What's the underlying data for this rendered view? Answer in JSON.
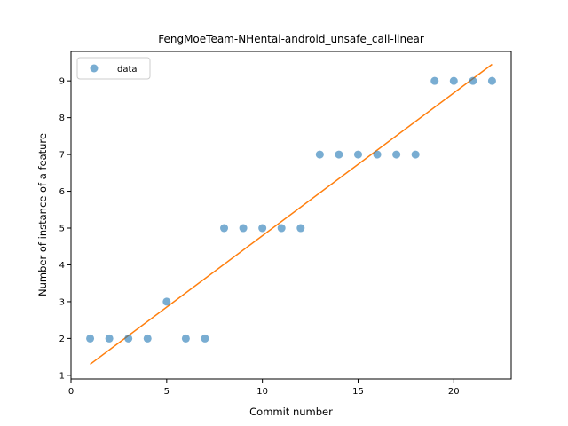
{
  "chart_data": {
    "type": "scatter",
    "title": "FengMoeTeam-NHentai-android_unsafe_call-linear",
    "xlabel": "Commit number",
    "ylabel": "Number of instance of a feature",
    "xlim": [
      0,
      23
    ],
    "ylim": [
      0.9,
      9.8
    ],
    "xticks": [
      0,
      5,
      10,
      15,
      20
    ],
    "yticks": [
      1,
      2,
      3,
      4,
      5,
      6,
      7,
      8,
      9
    ],
    "legend_position": "top-left",
    "series": [
      {
        "name": "data",
        "kind": "scatter",
        "color": "#1f77b4",
        "x": [
          1,
          2,
          3,
          4,
          5,
          6,
          7,
          8,
          9,
          10,
          11,
          12,
          13,
          14,
          15,
          16,
          17,
          18,
          19,
          20,
          21,
          22
        ],
        "y": [
          2,
          2,
          2,
          2,
          3,
          2,
          2,
          5,
          5,
          5,
          5,
          5,
          7,
          7,
          7,
          7,
          7,
          7,
          9,
          9,
          9,
          9
        ]
      },
      {
        "kind": "line",
        "color": "#ff7f0e",
        "x": [
          1,
          22
        ],
        "y": [
          1.3,
          9.45
        ]
      }
    ]
  }
}
